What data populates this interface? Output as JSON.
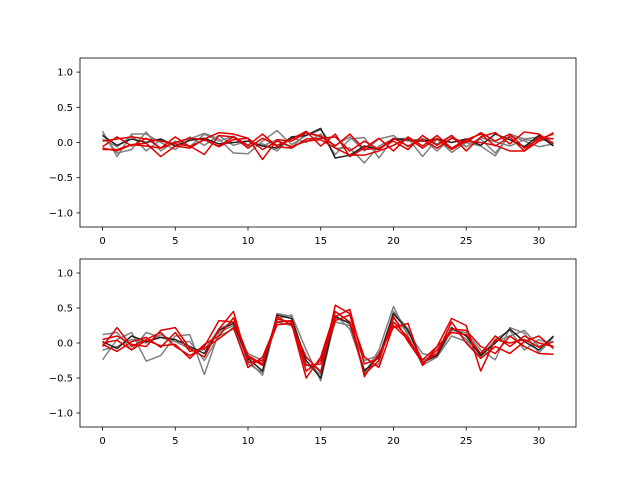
{
  "chart_data": [
    {
      "type": "line",
      "xlim": [
        -1.55,
        32.55
      ],
      "ylim": [
        -1.2,
        1.2
      ],
      "xticks": [
        0,
        5,
        10,
        15,
        20,
        25,
        30
      ],
      "yticks": [
        -1.0,
        -0.5,
        0.0,
        0.5,
        1.0
      ],
      "xtick_labels": [
        "0",
        "5",
        "10",
        "15",
        "20",
        "25",
        "30"
      ],
      "ytick_labels": [
        "−1.0",
        "−0.5",
        "0.0",
        "0.5",
        "1.0"
      ],
      "grid": false,
      "x": [
        0,
        1,
        2,
        3,
        4,
        5,
        6,
        7,
        8,
        9,
        10,
        11,
        12,
        13,
        14,
        15,
        16,
        17,
        18,
        19,
        20,
        21,
        22,
        23,
        24,
        25,
        26,
        27,
        28,
        29,
        30,
        31
      ],
      "series": [
        {
          "color": "#808080",
          "values": [
            0.16,
            -0.2,
            0.12,
            0.12,
            0.0,
            -0.1,
            0.05,
            0.13,
            0.05,
            -0.15,
            -0.16,
            0.02,
            0.17,
            -0.03,
            0.1,
            0.18,
            -0.08,
            -0.08,
            -0.29,
            -0.05,
            0.05,
            0.06,
            -0.2,
            0.05,
            -0.14,
            0.0,
            -0.05,
            -0.19,
            0.12,
            0.05,
            0.08,
            0.0
          ]
        },
        {
          "color": "#808080",
          "values": [
            0.12,
            -0.15,
            -0.1,
            0.15,
            -0.12,
            0.02,
            -0.06,
            0.12,
            0.02,
            0.09,
            -0.05,
            -0.02,
            -0.12,
            0.07,
            0.0,
            0.12,
            -0.17,
            0.05,
            0.07,
            -0.22,
            0.06,
            0.02,
            0.05,
            -0.12,
            0.07,
            -0.06,
            0.05,
            -0.15,
            0.1,
            0.02,
            -0.06,
            -0.02
          ]
        },
        {
          "color": "#808080",
          "values": [
            0.05,
            -0.06,
            0.1,
            -0.12,
            0.04,
            -0.05,
            0.08,
            -0.04,
            0.1,
            -0.04,
            0.02,
            -0.05,
            0.04,
            -0.08,
            0.14,
            0.08,
            -0.04,
            0.08,
            -0.12,
            0.05,
            0.1,
            -0.06,
            0.06,
            -0.02,
            0.1,
            -0.06,
            0.07,
            0.01,
            -0.05,
            0.04,
            0.02,
            0.06
          ]
        },
        {
          "color": "#202020",
          "values": [
            0.1,
            -0.04,
            0.05,
            0.0,
            0.05,
            -0.05,
            0.03,
            0.06,
            -0.02,
            0.0,
            0.02,
            -0.05,
            -0.08,
            0.08,
            0.1,
            0.2,
            -0.22,
            -0.18,
            -0.05,
            -0.1,
            0.05,
            0.04,
            0.02,
            0.05,
            0.0,
            0.05,
            -0.04,
            0.12,
            0.04,
            -0.06,
            0.1,
            -0.05
          ]
        },
        {
          "color": "#e00000",
          "values": [
            -0.08,
            -0.12,
            -0.03,
            -0.01,
            -0.2,
            -0.05,
            -0.08,
            0.05,
            0.14,
            0.12,
            0.06,
            -0.24,
            0.04,
            0.02,
            0.14,
            0.09,
            -0.05,
            0.12,
            -0.1,
            -0.08,
            0.02,
            -0.1,
            0.1,
            -0.04,
            0.1,
            -0.12,
            0.08,
            0.14,
            -0.02,
            0.15,
            0.12,
            -0.02
          ]
        },
        {
          "color": "#e00000",
          "values": [
            0.02,
            0.05,
            0.08,
            0.05,
            0.02,
            -0.02,
            -0.05,
            -0.17,
            0.1,
            0.08,
            -0.04,
            0.12,
            -0.06,
            -0.08,
            0.05,
            0.06,
            0.08,
            -0.12,
            0.02,
            -0.1,
            0.06,
            -0.05,
            0.04,
            -0.08,
            0.06,
            0.0,
            0.14,
            0.02,
            0.12,
            -0.08,
            0.05,
            0.12
          ]
        },
        {
          "color": "#e00000",
          "values": [
            -0.06,
            0.08,
            -0.05,
            0.06,
            -0.08,
            0.08,
            -0.06,
            0.04,
            -0.05,
            0.08,
            -0.08,
            0.06,
            -0.04,
            0.05,
            0.16,
            -0.05,
            0.12,
            -0.2,
            -0.08,
            0.06,
            -0.12,
            0.08,
            -0.05,
            0.1,
            -0.08,
            0.04,
            0.12,
            -0.05,
            0.08,
            -0.12,
            0.08,
            0.05
          ]
        },
        {
          "color": "#e00000",
          "values": [
            -0.1,
            -0.1,
            -0.03,
            -0.05,
            -0.08,
            0.0,
            0.06,
            0.04,
            -0.06,
            0.04,
            0.06,
            -0.1,
            0.02,
            -0.06,
            0.02,
            0.04,
            -0.08,
            -0.18,
            -0.18,
            -0.12,
            -0.04,
            0.06,
            -0.08,
            0.06,
            -0.1,
            0.02,
            0.0,
            -0.04,
            -0.12,
            -0.12,
            0.02,
            0.14
          ]
        }
      ]
    },
    {
      "type": "line",
      "xlim": [
        -1.55,
        32.55
      ],
      "ylim": [
        -1.2,
        1.2
      ],
      "xticks": [
        0,
        5,
        10,
        15,
        20,
        25,
        30
      ],
      "yticks": [
        -1.0,
        -0.5,
        0.0,
        0.5,
        1.0
      ],
      "xtick_labels": [
        "0",
        "5",
        "10",
        "15",
        "20",
        "25",
        "30"
      ],
      "ytick_labels": [
        "−1.0",
        "−0.5",
        "0.0",
        "0.5",
        "1.0"
      ],
      "grid": false,
      "x": [
        0,
        1,
        2,
        3,
        4,
        5,
        6,
        7,
        8,
        9,
        10,
        11,
        12,
        13,
        14,
        15,
        16,
        17,
        18,
        19,
        20,
        21,
        22,
        23,
        24,
        25,
        26,
        27,
        28,
        29,
        30,
        31
      ],
      "series": [
        {
          "color": "#808080",
          "values": [
            -0.24,
            0.05,
            0.15,
            -0.26,
            -0.18,
            0.1,
            0.12,
            -0.45,
            0.15,
            0.25,
            -0.25,
            -0.46,
            0.35,
            0.4,
            -0.1,
            -0.54,
            0.35,
            0.3,
            -0.44,
            -0.1,
            0.52,
            0.1,
            -0.32,
            -0.2,
            0.18,
            0.15,
            -0.1,
            -0.24,
            0.22,
            0.14,
            -0.14,
            0.08
          ]
        },
        {
          "color": "#808080",
          "values": [
            0.12,
            0.15,
            -0.1,
            0.15,
            0.08,
            0.02,
            -0.08,
            -0.1,
            0.2,
            0.3,
            -0.3,
            -0.42,
            0.42,
            0.38,
            -0.3,
            -0.45,
            0.4,
            0.2,
            -0.38,
            -0.3,
            0.45,
            0.2,
            -0.25,
            -0.15,
            0.22,
            0.05,
            -0.15,
            0.02,
            0.1,
            0.18,
            -0.05,
            0.02
          ]
        },
        {
          "color": "#808080",
          "values": [
            -0.1,
            -0.05,
            0.05,
            0.0,
            0.12,
            0.02,
            0.02,
            -0.25,
            0.1,
            0.2,
            -0.15,
            -0.25,
            0.3,
            0.25,
            -0.2,
            -0.4,
            0.3,
            0.25,
            -0.25,
            -0.18,
            0.35,
            0.15,
            -0.15,
            -0.2,
            0.1,
            0.02,
            -0.2,
            0.05,
            0.18,
            -0.1,
            0.05,
            -0.05
          ]
        },
        {
          "color": "#202020",
          "values": [
            0.02,
            -0.08,
            0.1,
            0.02,
            0.08,
            0.05,
            -0.05,
            -0.15,
            0.18,
            0.28,
            -0.22,
            -0.4,
            0.4,
            0.35,
            -0.25,
            -0.5,
            0.38,
            0.28,
            -0.4,
            -0.2,
            0.42,
            0.18,
            -0.28,
            -0.18,
            0.22,
            0.1,
            -0.18,
            0.0,
            0.2,
            0.02,
            -0.1,
            0.1
          ]
        },
        {
          "color": "#e00000",
          "values": [
            -0.05,
            0.22,
            -0.05,
            0.05,
            0.15,
            -0.05,
            -0.18,
            -0.05,
            0.32,
            0.3,
            -0.2,
            -0.32,
            0.38,
            0.25,
            -0.2,
            -0.42,
            0.54,
            0.42,
            -0.48,
            -0.15,
            0.22,
            0.28,
            -0.32,
            -0.05,
            0.35,
            0.25,
            -0.4,
            0.05,
            0.0,
            0.05,
            -0.06,
            0.02
          ]
        },
        {
          "color": "#e00000",
          "values": [
            0.05,
            0.1,
            -0.02,
            -0.05,
            0.18,
            0.22,
            -0.08,
            -0.2,
            0.2,
            0.45,
            -0.28,
            -0.25,
            0.26,
            0.28,
            -0.5,
            -0.2,
            0.45,
            0.3,
            -0.45,
            -0.25,
            0.38,
            0.02,
            -0.28,
            -0.15,
            0.3,
            0.0,
            -0.22,
            -0.05,
            -0.15,
            0.02,
            0.1,
            -0.08
          ]
        },
        {
          "color": "#e00000",
          "values": [
            -0.02,
            -0.12,
            0.02,
            0.08,
            -0.06,
            0.15,
            -0.12,
            -0.08,
            0.06,
            0.22,
            -0.35,
            -0.2,
            0.3,
            0.32,
            -0.4,
            -0.25,
            0.38,
            0.48,
            -0.3,
            -0.22,
            0.3,
            0.08,
            -0.3,
            -0.1,
            0.2,
            0.18,
            -0.05,
            -0.15,
            0.1,
            -0.05,
            -0.15,
            -0.16
          ]
        },
        {
          "color": "#e00000",
          "values": [
            0.0,
            0.04,
            -0.1,
            0.04,
            -0.04,
            -0.02,
            -0.22,
            -0.02,
            0.1,
            0.36,
            -0.18,
            -0.3,
            0.34,
            0.3,
            -0.32,
            -0.3,
            0.32,
            0.4,
            -0.2,
            -0.35,
            0.25,
            0.05,
            -0.24,
            -0.05,
            0.15,
            0.12,
            -0.15,
            0.1,
            -0.05,
            0.1,
            0.0,
            -0.05
          ]
        }
      ]
    }
  ]
}
